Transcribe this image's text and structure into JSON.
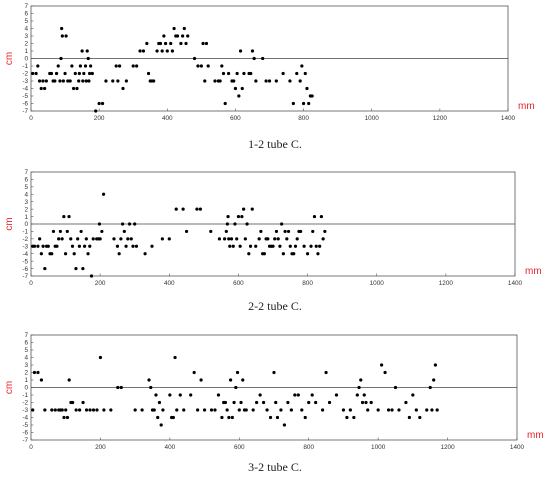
{
  "chart_data": [
    {
      "type": "scatter",
      "caption": "1-2 tube C.",
      "xlabel": "mm",
      "ylabel": "cm",
      "xlim": [
        0,
        1400
      ],
      "ylim": [
        -7,
        7
      ],
      "xticks": [
        0,
        200,
        400,
        600,
        800,
        1000,
        1200,
        1400
      ],
      "yticks": [
        7,
        6,
        5,
        4,
        3,
        2,
        1,
        0,
        -1,
        -2,
        -3,
        -4,
        -5,
        -6,
        -7
      ],
      "zero_line": true,
      "points": [
        [
          5,
          -2
        ],
        [
          15,
          -2
        ],
        [
          20,
          -1
        ],
        [
          25,
          -3
        ],
        [
          30,
          -4
        ],
        [
          35,
          -3
        ],
        [
          40,
          -4
        ],
        [
          45,
          -3
        ],
        [
          55,
          -2
        ],
        [
          60,
          -2
        ],
        [
          65,
          -3
        ],
        [
          70,
          -3
        ],
        [
          75,
          -2
        ],
        [
          80,
          -1
        ],
        [
          85,
          -3
        ],
        [
          88,
          0
        ],
        [
          90,
          4
        ],
        [
          92,
          3
        ],
        [
          95,
          -3
        ],
        [
          100,
          -2
        ],
        [
          103,
          3
        ],
        [
          108,
          -3
        ],
        [
          115,
          -3
        ],
        [
          120,
          -1
        ],
        [
          125,
          -4
        ],
        [
          130,
          -2
        ],
        [
          135,
          -4
        ],
        [
          140,
          -3
        ],
        [
          142,
          -2
        ],
        [
          145,
          -1
        ],
        [
          150,
          1
        ],
        [
          152,
          -3
        ],
        [
          155,
          -2
        ],
        [
          160,
          -1
        ],
        [
          162,
          -3
        ],
        [
          165,
          1
        ],
        [
          168,
          0
        ],
        [
          170,
          -3
        ],
        [
          172,
          -2
        ],
        [
          175,
          -1
        ],
        [
          180,
          -2
        ],
        [
          190,
          -7
        ],
        [
          200,
          -6
        ],
        [
          210,
          -6
        ],
        [
          220,
          -3
        ],
        [
          240,
          -3
        ],
        [
          250,
          -1
        ],
        [
          255,
          -3
        ],
        [
          260,
          -1
        ],
        [
          270,
          -4
        ],
        [
          280,
          -3
        ],
        [
          300,
          -1
        ],
        [
          310,
          -1
        ],
        [
          320,
          1
        ],
        [
          330,
          1
        ],
        [
          340,
          2
        ],
        [
          345,
          -2
        ],
        [
          350,
          -3
        ],
        [
          355,
          -3
        ],
        [
          360,
          -3
        ],
        [
          370,
          1
        ],
        [
          375,
          2
        ],
        [
          380,
          2
        ],
        [
          385,
          1
        ],
        [
          390,
          3
        ],
        [
          395,
          2
        ],
        [
          400,
          1
        ],
        [
          410,
          2
        ],
        [
          415,
          1
        ],
        [
          420,
          4
        ],
        [
          425,
          3
        ],
        [
          430,
          3
        ],
        [
          440,
          2
        ],
        [
          445,
          3
        ],
        [
          450,
          4
        ],
        [
          455,
          2
        ],
        [
          460,
          3
        ],
        [
          480,
          0
        ],
        [
          490,
          -1
        ],
        [
          500,
          -1
        ],
        [
          505,
          2
        ],
        [
          510,
          -3
        ],
        [
          515,
          2
        ],
        [
          520,
          -1
        ],
        [
          540,
          -3
        ],
        [
          550,
          -3
        ],
        [
          555,
          -3
        ],
        [
          560,
          -1
        ],
        [
          565,
          -2
        ],
        [
          570,
          -6
        ],
        [
          580,
          -2
        ],
        [
          590,
          -3
        ],
        [
          595,
          -3
        ],
        [
          600,
          -4
        ],
        [
          605,
          -2
        ],
        [
          610,
          -5
        ],
        [
          615,
          1
        ],
        [
          620,
          -4
        ],
        [
          625,
          -2
        ],
        [
          640,
          -2
        ],
        [
          645,
          -2
        ],
        [
          650,
          1
        ],
        [
          655,
          0
        ],
        [
          660,
          -3
        ],
        [
          680,
          0
        ],
        [
          690,
          -3
        ],
        [
          700,
          -3
        ],
        [
          720,
          -3
        ],
        [
          740,
          -2
        ],
        [
          760,
          -3
        ],
        [
          770,
          -6
        ],
        [
          780,
          -2
        ],
        [
          790,
          -3
        ],
        [
          795,
          -1
        ],
        [
          800,
          -6
        ],
        [
          805,
          -2
        ],
        [
          810,
          -4
        ],
        [
          815,
          -6
        ],
        [
          820,
          -5
        ],
        [
          825,
          -5
        ]
      ]
    },
    {
      "type": "scatter",
      "caption": "2-2 tube C.",
      "xlabel": "mm",
      "ylabel": "cm",
      "xlim": [
        0,
        1400
      ],
      "ylim": [
        -7,
        7
      ],
      "xticks": [
        0,
        200,
        400,
        600,
        800,
        1000,
        1200,
        1400
      ],
      "yticks": [
        7,
        6,
        5,
        4,
        3,
        2,
        1,
        0,
        -1,
        -2,
        -3,
        -4,
        -5,
        -6,
        -7
      ],
      "zero_line": true,
      "points": [
        [
          5,
          -3
        ],
        [
          10,
          -3
        ],
        [
          20,
          -3
        ],
        [
          25,
          -2
        ],
        [
          30,
          -4
        ],
        [
          35,
          -3
        ],
        [
          40,
          -6
        ],
        [
          45,
          -3
        ],
        [
          50,
          -3
        ],
        [
          55,
          -4
        ],
        [
          60,
          -4
        ],
        [
          65,
          -1
        ],
        [
          70,
          -3
        ],
        [
          75,
          -3
        ],
        [
          80,
          -2
        ],
        [
          85,
          -1
        ],
        [
          90,
          -2
        ],
        [
          95,
          1
        ],
        [
          100,
          -4
        ],
        [
          105,
          -1
        ],
        [
          110,
          1
        ],
        [
          115,
          -2
        ],
        [
          120,
          -3
        ],
        [
          125,
          -4
        ],
        [
          130,
          -6
        ],
        [
          135,
          -2
        ],
        [
          140,
          -3
        ],
        [
          145,
          -1
        ],
        [
          150,
          -6
        ],
        [
          155,
          -3
        ],
        [
          160,
          -2
        ],
        [
          165,
          -4
        ],
        [
          170,
          -3
        ],
        [
          175,
          -7
        ],
        [
          180,
          -2
        ],
        [
          190,
          -2
        ],
        [
          195,
          -2
        ],
        [
          198,
          0
        ],
        [
          200,
          -2
        ],
        [
          205,
          -1
        ],
        [
          210,
          4
        ],
        [
          240,
          -2
        ],
        [
          250,
          -3
        ],
        [
          255,
          -4
        ],
        [
          260,
          -2
        ],
        [
          265,
          0
        ],
        [
          270,
          -1
        ],
        [
          275,
          -3
        ],
        [
          280,
          -2
        ],
        [
          285,
          0
        ],
        [
          290,
          -2
        ],
        [
          295,
          -3
        ],
        [
          300,
          0
        ],
        [
          305,
          -3
        ],
        [
          330,
          -4
        ],
        [
          350,
          -3
        ],
        [
          380,
          -2
        ],
        [
          400,
          -2
        ],
        [
          420,
          2
        ],
        [
          440,
          2
        ],
        [
          450,
          -1
        ],
        [
          480,
          2
        ],
        [
          490,
          2
        ],
        [
          520,
          -1
        ],
        [
          545,
          -2
        ],
        [
          560,
          -2
        ],
        [
          565,
          -1
        ],
        [
          568,
          0
        ],
        [
          570,
          1
        ],
        [
          572,
          -2
        ],
        [
          575,
          -3
        ],
        [
          580,
          -2
        ],
        [
          585,
          -3
        ],
        [
          590,
          0
        ],
        [
          595,
          -2
        ],
        [
          600,
          1
        ],
        [
          605,
          -3
        ],
        [
          610,
          1
        ],
        [
          615,
          2
        ],
        [
          620,
          -2
        ],
        [
          625,
          0
        ],
        [
          630,
          -4
        ],
        [
          635,
          -3
        ],
        [
          640,
          2
        ],
        [
          650,
          -3
        ],
        [
          660,
          -2
        ],
        [
          665,
          -1
        ],
        [
          670,
          -4
        ],
        [
          675,
          -4
        ],
        [
          680,
          -2
        ],
        [
          685,
          -2
        ],
        [
          690,
          -3
        ],
        [
          695,
          -3
        ],
        [
          700,
          -3
        ],
        [
          705,
          -2
        ],
        [
          710,
          -1
        ],
        [
          715,
          -2
        ],
        [
          720,
          -3
        ],
        [
          725,
          0
        ],
        [
          730,
          -4
        ],
        [
          735,
          -1
        ],
        [
          740,
          -2
        ],
        [
          745,
          -1
        ],
        [
          750,
          -3
        ],
        [
          755,
          -4
        ],
        [
          760,
          -4
        ],
        [
          765,
          -3
        ],
        [
          770,
          -2
        ],
        [
          775,
          -1
        ],
        [
          780,
          -1
        ],
        [
          790,
          -3
        ],
        [
          800,
          -4
        ],
        [
          810,
          -3
        ],
        [
          815,
          -1
        ],
        [
          820,
          1
        ],
        [
          825,
          -3
        ],
        [
          830,
          -4
        ],
        [
          835,
          -3
        ],
        [
          840,
          1
        ],
        [
          845,
          -2
        ],
        [
          850,
          -1
        ]
      ]
    },
    {
      "type": "scatter",
      "caption": "3-2 tube C.",
      "xlabel": "mm",
      "ylabel": "cm",
      "xlim": [
        0,
        1400
      ],
      "ylim": [
        -7,
        7
      ],
      "xticks": [
        0,
        200,
        400,
        600,
        800,
        1000,
        1200,
        1400
      ],
      "yticks": [
        7,
        6,
        5,
        4,
        3,
        2,
        1,
        0,
        -1,
        -2,
        -3,
        -4,
        -5,
        -6,
        -7
      ],
      "zero_line": true,
      "points": [
        [
          5,
          -3
        ],
        [
          10,
          2
        ],
        [
          20,
          2
        ],
        [
          30,
          1
        ],
        [
          40,
          -3
        ],
        [
          60,
          -3
        ],
        [
          70,
          -3
        ],
        [
          80,
          -3
        ],
        [
          85,
          -3
        ],
        [
          90,
          -3
        ],
        [
          95,
          -4
        ],
        [
          100,
          -3
        ],
        [
          105,
          -4
        ],
        [
          110,
          1
        ],
        [
          115,
          -2
        ],
        [
          120,
          -2
        ],
        [
          130,
          -3
        ],
        [
          140,
          -3
        ],
        [
          150,
          -2
        ],
        [
          160,
          -3
        ],
        [
          170,
          -3
        ],
        [
          180,
          -3
        ],
        [
          190,
          -3
        ],
        [
          200,
          4
        ],
        [
          210,
          -3
        ],
        [
          230,
          -3
        ],
        [
          250,
          0
        ],
        [
          260,
          0
        ],
        [
          300,
          -3
        ],
        [
          320,
          -3
        ],
        [
          340,
          1
        ],
        [
          345,
          0
        ],
        [
          350,
          -3
        ],
        [
          355,
          -3
        ],
        [
          360,
          -1
        ],
        [
          365,
          -4
        ],
        [
          370,
          -2
        ],
        [
          375,
          -5
        ],
        [
          380,
          -3
        ],
        [
          400,
          -1
        ],
        [
          405,
          -4
        ],
        [
          410,
          -4
        ],
        [
          415,
          4
        ],
        [
          420,
          -3
        ],
        [
          430,
          -1
        ],
        [
          440,
          -3
        ],
        [
          460,
          -1
        ],
        [
          470,
          2
        ],
        [
          480,
          -3
        ],
        [
          490,
          1
        ],
        [
          500,
          -3
        ],
        [
          520,
          -3
        ],
        [
          530,
          -3
        ],
        [
          540,
          -1
        ],
        [
          550,
          -4
        ],
        [
          555,
          -2
        ],
        [
          560,
          -2
        ],
        [
          565,
          -3
        ],
        [
          570,
          -4
        ],
        [
          575,
          1
        ],
        [
          580,
          -4
        ],
        [
          585,
          -2
        ],
        [
          590,
          0
        ],
        [
          595,
          2
        ],
        [
          600,
          -3
        ],
        [
          605,
          -2
        ],
        [
          610,
          1
        ],
        [
          615,
          -3
        ],
        [
          620,
          -3
        ],
        [
          640,
          -3
        ],
        [
          650,
          -2
        ],
        [
          660,
          -1
        ],
        [
          670,
          -2
        ],
        [
          680,
          -3
        ],
        [
          690,
          -4
        ],
        [
          700,
          2
        ],
        [
          705,
          -2
        ],
        [
          710,
          -4
        ],
        [
          720,
          -3
        ],
        [
          730,
          -5
        ],
        [
          740,
          -2
        ],
        [
          750,
          -3
        ],
        [
          760,
          -1
        ],
        [
          770,
          -1
        ],
        [
          780,
          -3
        ],
        [
          790,
          -4
        ],
        [
          800,
          -2
        ],
        [
          810,
          -1
        ],
        [
          820,
          -2
        ],
        [
          840,
          -3
        ],
        [
          850,
          2
        ],
        [
          860,
          -2
        ],
        [
          880,
          -1
        ],
        [
          900,
          -3
        ],
        [
          910,
          -4
        ],
        [
          920,
          -3
        ],
        [
          930,
          -4
        ],
        [
          940,
          -1
        ],
        [
          945,
          0
        ],
        [
          950,
          1
        ],
        [
          955,
          -2
        ],
        [
          960,
          -1
        ],
        [
          965,
          -2
        ],
        [
          970,
          -3
        ],
        [
          980,
          -2
        ],
        [
          1000,
          -3
        ],
        [
          1010,
          3
        ],
        [
          1020,
          2
        ],
        [
          1030,
          -3
        ],
        [
          1040,
          -3
        ],
        [
          1050,
          0
        ],
        [
          1060,
          -3
        ],
        [
          1080,
          -2
        ],
        [
          1090,
          -4
        ],
        [
          1100,
          -1
        ],
        [
          1110,
          -3
        ],
        [
          1120,
          -4
        ],
        [
          1140,
          -3
        ],
        [
          1150,
          0
        ],
        [
          1155,
          -3
        ],
        [
          1160,
          1
        ],
        [
          1165,
          3
        ],
        [
          1170,
          -3
        ]
      ]
    }
  ]
}
